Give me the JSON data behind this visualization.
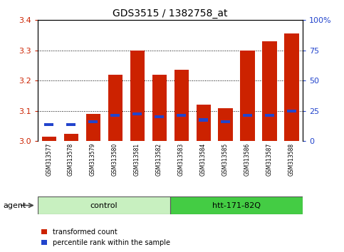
{
  "title": "GDS3515 / 1382758_at",
  "samples": [
    "GSM313577",
    "GSM313578",
    "GSM313579",
    "GSM313580",
    "GSM313581",
    "GSM313582",
    "GSM313583",
    "GSM313584",
    "GSM313585",
    "GSM313586",
    "GSM313587",
    "GSM313588"
  ],
  "red_values": [
    3.015,
    3.025,
    3.09,
    3.22,
    3.3,
    3.22,
    3.235,
    3.12,
    3.11,
    3.3,
    3.33,
    3.355
  ],
  "blue_values": [
    3.055,
    3.055,
    3.065,
    3.085,
    3.09,
    3.08,
    3.085,
    3.07,
    3.065,
    3.085,
    3.085,
    3.1
  ],
  "ymin": 3.0,
  "ymax": 3.4,
  "y_ticks": [
    3.0,
    3.1,
    3.2,
    3.3,
    3.4
  ],
  "right_yticks": [
    0,
    25,
    50,
    75,
    100
  ],
  "right_yticklabels": [
    "0",
    "25",
    "50",
    "75",
    "100%"
  ],
  "control_samples": 6,
  "control_label": "control",
  "treatment_label": "htt-171-82Q",
  "agent_label": "agent",
  "bar_color": "#cc2200",
  "blue_color": "#2244cc",
  "bar_width": 0.65,
  "background_color": "#ffffff",
  "tick_label_area_color": "#d0d0d0",
  "control_group_color": "#c8f0c0",
  "treatment_group_color": "#44cc44",
  "legend_red_label": "transformed count",
  "legend_blue_label": "percentile rank within the sample",
  "title_fontsize": 10,
  "tick_fontsize": 8,
  "sample_fontsize": 5.5,
  "group_fontsize": 8,
  "legend_fontsize": 7
}
